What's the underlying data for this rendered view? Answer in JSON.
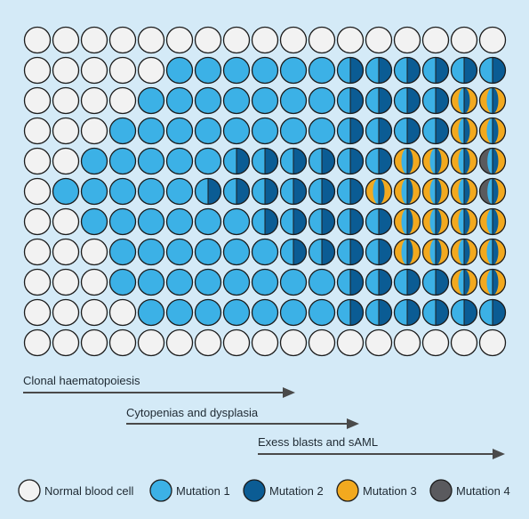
{
  "colors": {
    "background": "#d4eaf7",
    "normal": "#f2f2f2",
    "mutation_1": "#3cb1e6",
    "mutation_2": "#0b5c94",
    "mutation_3": "#f2a91f",
    "mutation_4": "#5a5a5e",
    "outline": "#1c1c1c",
    "arrow": "#4a4a4a"
  },
  "grid": {
    "rows": [
      [
        "N",
        "N",
        "N",
        "N",
        "N",
        "N",
        "N",
        "N",
        "N",
        "N",
        "N",
        "N",
        "N",
        "N",
        "N",
        "N",
        "N"
      ],
      [
        "N",
        "N",
        "N",
        "N",
        "N",
        "1",
        "1",
        "1",
        "1",
        "1",
        "1",
        "2",
        "2",
        "2",
        "2",
        "2",
        "2"
      ],
      [
        "N",
        "N",
        "N",
        "N",
        "1",
        "1",
        "1",
        "1",
        "1",
        "1",
        "1",
        "2",
        "2",
        "2",
        "2",
        "3",
        "3"
      ],
      [
        "N",
        "N",
        "N",
        "1",
        "1",
        "1",
        "1",
        "1",
        "1",
        "1",
        "1",
        "2",
        "2",
        "2",
        "2",
        "3",
        "3"
      ],
      [
        "N",
        "N",
        "1",
        "1",
        "1",
        "1",
        "1",
        "2",
        "2",
        "2",
        "2",
        "2",
        "2",
        "3",
        "3",
        "3",
        "4"
      ],
      [
        "N",
        "1",
        "1",
        "1",
        "1",
        "1",
        "2",
        "2",
        "2",
        "2",
        "2",
        "2",
        "3",
        "3",
        "3",
        "3",
        "4"
      ],
      [
        "N",
        "N",
        "1",
        "1",
        "1",
        "1",
        "1",
        "1",
        "2",
        "2",
        "2",
        "2",
        "2",
        "3",
        "3",
        "3",
        "3"
      ],
      [
        "N",
        "N",
        "N",
        "1",
        "1",
        "1",
        "1",
        "1",
        "1",
        "2",
        "2",
        "2",
        "2",
        "3",
        "3",
        "3",
        "3"
      ],
      [
        "N",
        "N",
        "N",
        "1",
        "1",
        "1",
        "1",
        "1",
        "1",
        "1",
        "1",
        "2",
        "2",
        "2",
        "2",
        "3",
        "3"
      ],
      [
        "N",
        "N",
        "N",
        "N",
        "1",
        "1",
        "1",
        "1",
        "1",
        "1",
        "1",
        "2",
        "2",
        "2",
        "2",
        "2",
        "2"
      ],
      [
        "N",
        "N",
        "N",
        "N",
        "N",
        "N",
        "N",
        "N",
        "N",
        "N",
        "N",
        "N",
        "N",
        "N",
        "N",
        "N",
        "N"
      ]
    ]
  },
  "arrows": [
    {
      "label": "Clonal haematopoiesis"
    },
    {
      "label": "Cytopenias and dysplasia"
    },
    {
      "label": "Exess blasts and sAML"
    }
  ],
  "legend": [
    {
      "key": "normal",
      "label": "Normal blood cell"
    },
    {
      "key": "mutation_1",
      "label": "Mutation 1"
    },
    {
      "key": "mutation_2",
      "label": "Mutation 2"
    },
    {
      "key": "mutation_3",
      "label": "Mutation 3"
    },
    {
      "key": "mutation_4",
      "label": "Mutation 4"
    }
  ]
}
